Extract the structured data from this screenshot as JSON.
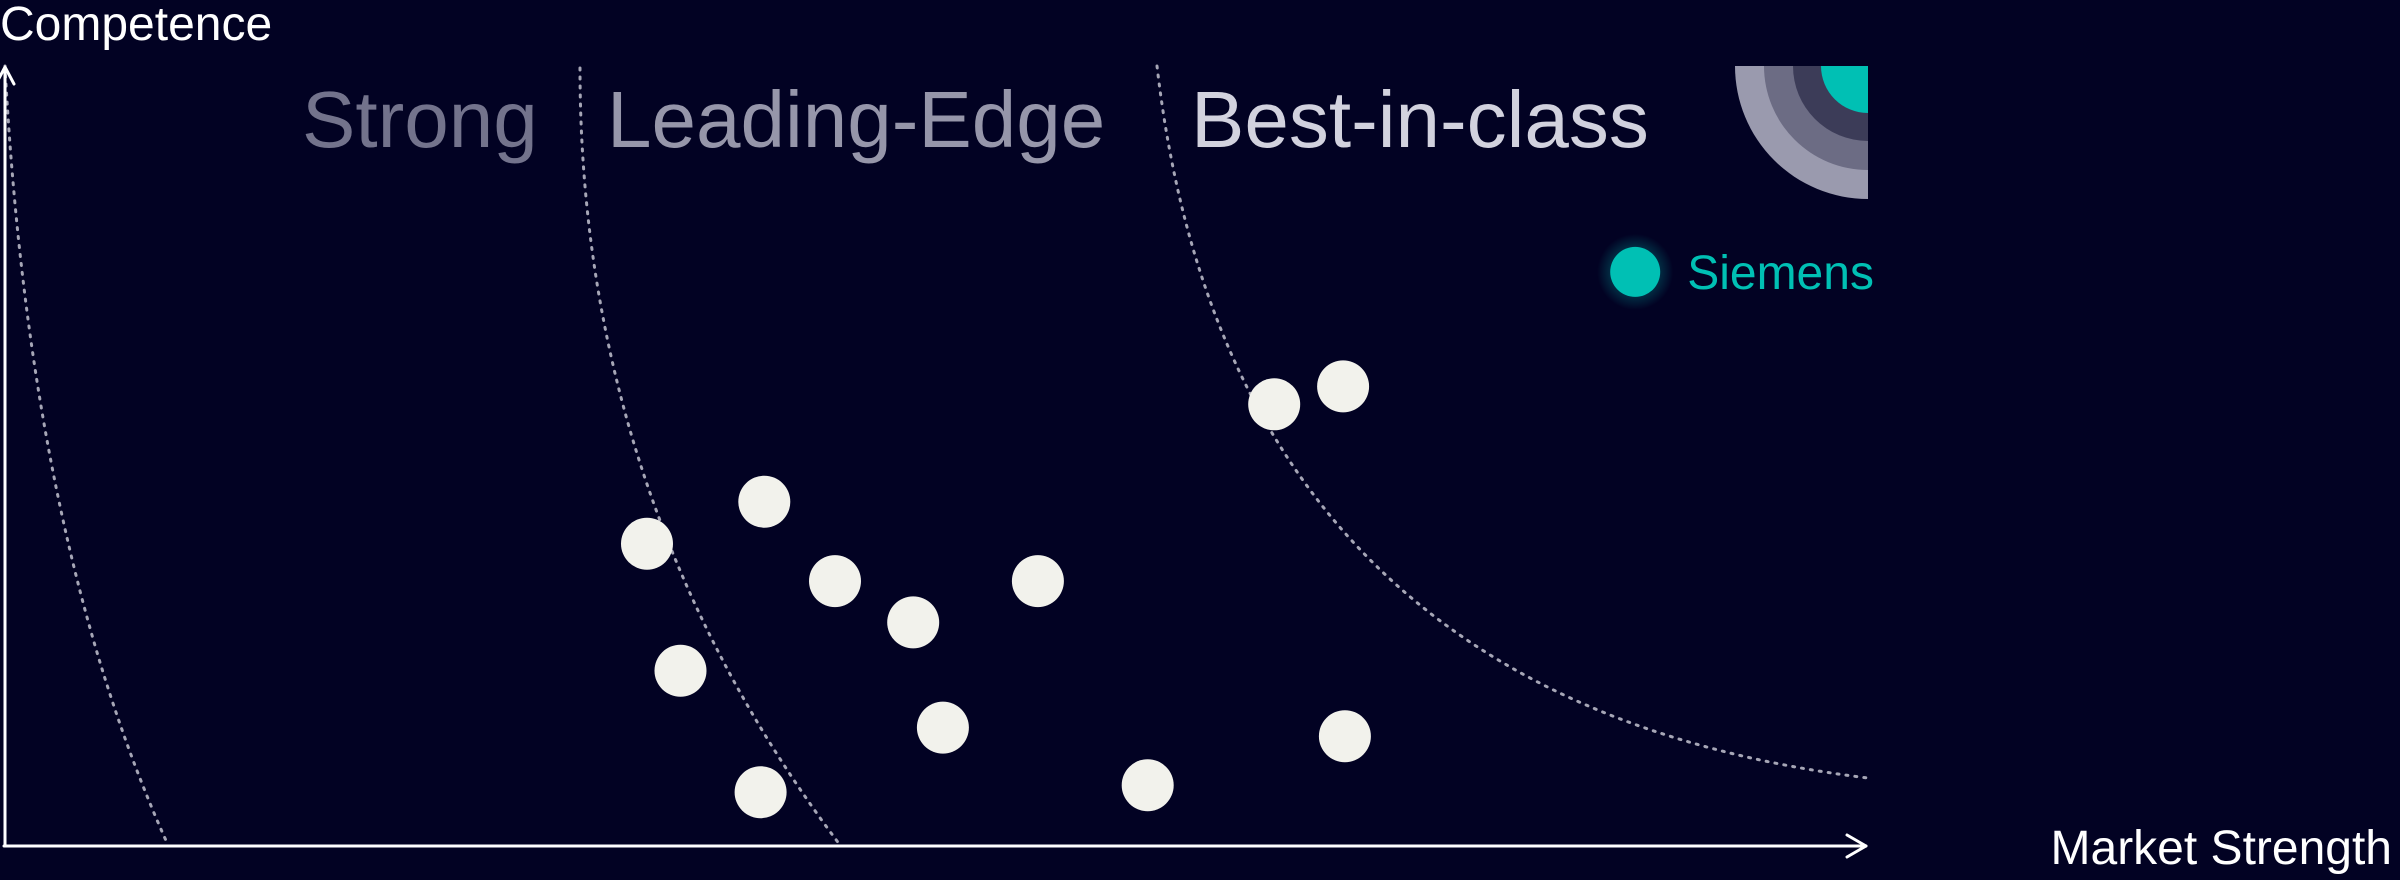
{
  "chart_data": {
    "type": "scatter",
    "xlabel": "Market Strength",
    "ylabel": "Competence",
    "xlim": [
      0,
      100
    ],
    "ylim": [
      0,
      100
    ],
    "grid": false,
    "zones": [
      {
        "label": "Strong",
        "color": "#73738c"
      },
      {
        "label": "Leading-Edge",
        "color": "#9696aa"
      },
      {
        "label": "Best-in-class",
        "color": "#d2d2de"
      }
    ],
    "points": [
      {
        "x": 34.5,
        "y": 38.8
      },
      {
        "x": 40.8,
        "y": 44.2
      },
      {
        "x": 44.6,
        "y": 34.0
      },
      {
        "x": 48.8,
        "y": 28.7
      },
      {
        "x": 55.5,
        "y": 34.0
      },
      {
        "x": 36.3,
        "y": 22.5
      },
      {
        "x": 50.4,
        "y": 15.2
      },
      {
        "x": 40.6,
        "y": 6.9
      },
      {
        "x": 61.4,
        "y": 7.8
      },
      {
        "x": 68.2,
        "y": 56.7
      },
      {
        "x": 71.9,
        "y": 59.0
      },
      {
        "x": 72.0,
        "y": 14.1
      }
    ],
    "highlight": {
      "label": "Siemens",
      "x": 87.6,
      "y": 73.7,
      "color": "#00c0b4"
    },
    "colors": {
      "background": "#020223",
      "axis": "#ffffff",
      "point": "#f2f2ec",
      "boundary": "#a6a6b6",
      "corner_rings": [
        "#9a9aae",
        "#6c6c84",
        "#3c3c58",
        "#00c0b4"
      ]
    }
  }
}
